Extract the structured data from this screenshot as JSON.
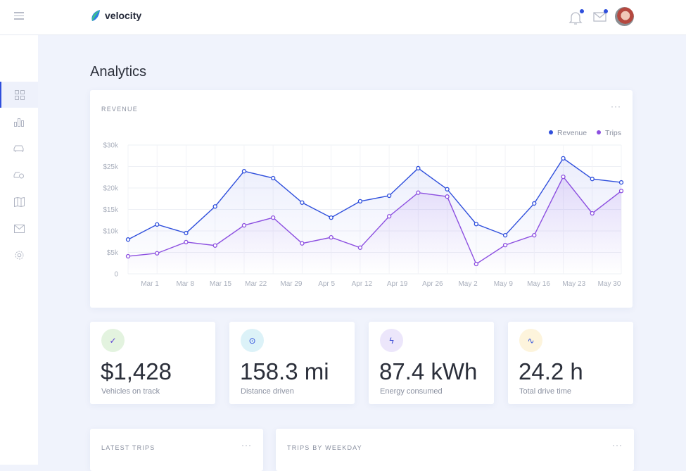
{
  "app": {
    "name": "velocity"
  },
  "header": {
    "notifications_unread": true,
    "messages_unread": true
  },
  "sidebar": {
    "items": [
      {
        "icon": "grid-icon",
        "active": true
      },
      {
        "icon": "bar-chart-icon"
      },
      {
        "icon": "car-icon"
      },
      {
        "icon": "car-settings-icon"
      },
      {
        "icon": "map-icon"
      },
      {
        "icon": "mail-icon"
      },
      {
        "icon": "gear-icon"
      }
    ]
  },
  "page": {
    "title": "Analytics"
  },
  "revenue_card": {
    "title": "REVENUE",
    "more": "···"
  },
  "chart_data": {
    "type": "line",
    "title": "REVENUE",
    "x_labels": [
      "Mar 1",
      "Mar 8",
      "Mar 15",
      "Mar 22",
      "Mar 29",
      "Apr 5",
      "Apr 12",
      "Apr 19",
      "Apr 26",
      "May 2",
      "May 9",
      "May 16",
      "May 23",
      "May 30"
    ],
    "y_ticks": [
      "0",
      "$5k",
      "$10k",
      "$15k",
      "$20k",
      "$25k",
      "$30k"
    ],
    "ylim": [
      0,
      30000
    ],
    "grid": true,
    "legend_position": "top-right",
    "series": [
      {
        "name": "Revenue",
        "color": "#2f4fdc",
        "values": [
          8000,
          11500,
          9500,
          15700,
          23900,
          22300,
          16600,
          13100,
          16900,
          18200,
          24600,
          19700,
          11600,
          9000,
          16400,
          26900,
          22100,
          21300
        ]
      },
      {
        "name": "Trips",
        "color": "#8c4fe0",
        "values": [
          4100,
          4800,
          7400,
          6600,
          11300,
          13100,
          7100,
          8500,
          6100,
          13400,
          18900,
          18000,
          2300,
          6700,
          9000,
          22600,
          14100,
          19300
        ]
      }
    ]
  },
  "stats": [
    {
      "value": "$1,428",
      "label": "Vehicles on track",
      "icon": "check-icon",
      "icon_bg": "#e3f3df",
      "icon_color": "#5b3fd6"
    },
    {
      "value": "158.3 mi",
      "label": "Distance driven",
      "icon": "map-pin-icon",
      "icon_bg": "#dcf2f8",
      "icon_color": "#2f4fdc"
    },
    {
      "value": "87.4 kWh",
      "label": "Energy consumed",
      "icon": "lightning-icon",
      "icon_bg": "#ece6fb",
      "icon_color": "#3f4fd6"
    },
    {
      "value": "24.2 h",
      "label": "Total drive time",
      "icon": "activity-icon",
      "icon_bg": "#fdf4dc",
      "icon_color": "#2f4fdc"
    }
  ],
  "latest_trips": {
    "title": "LATEST TRIPS",
    "more": "···"
  },
  "trips_by_weekday": {
    "title": "TRIPS BY WEEKDAY",
    "more": "···"
  }
}
